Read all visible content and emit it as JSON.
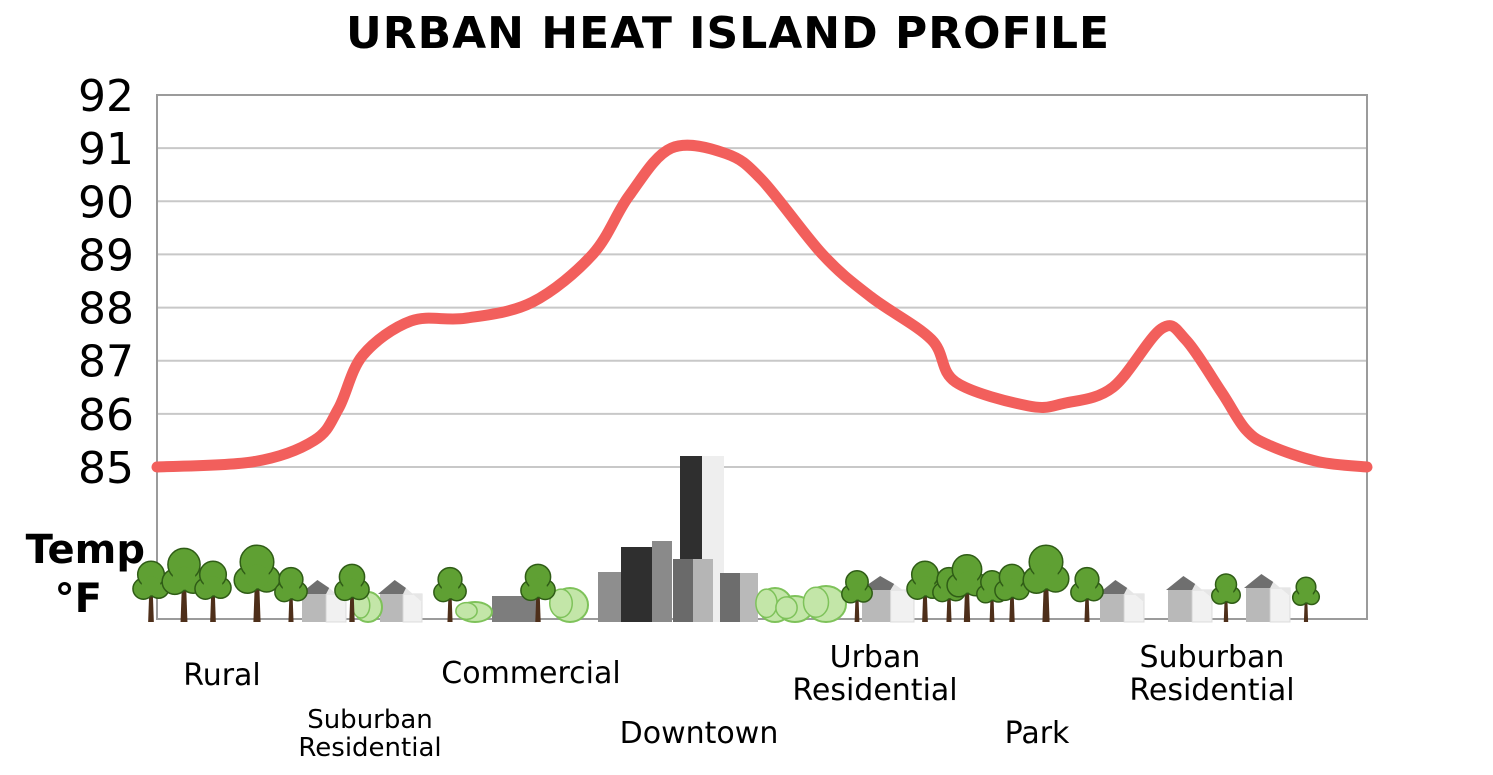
{
  "chart_data": {
    "type": "line",
    "title": "URBAN HEAT ISLAND PROFILE",
    "ylabel": [
      "Temp",
      "°F"
    ],
    "ylim": [
      82.2,
      92
    ],
    "yticks": [
      "85",
      "86",
      "87",
      "88",
      "89",
      "90",
      "91",
      "92"
    ],
    "grid": true,
    "line_color": "#f25f5c",
    "zones": [
      {
        "lines": [
          "Rural"
        ],
        "size": "large"
      },
      {
        "lines": [
          "Suburban",
          "Residential"
        ],
        "size": "small"
      },
      {
        "lines": [
          "Commercial"
        ],
        "size": "large"
      },
      {
        "lines": [
          "Downtown"
        ],
        "size": "large"
      },
      {
        "lines": [
          "Urban",
          "Residential"
        ],
        "size": "large"
      },
      {
        "lines": [
          "Park"
        ],
        "size": "large"
      },
      {
        "lines": [
          "Suburban",
          "Residential"
        ],
        "size": "large"
      }
    ],
    "series": [
      {
        "x": [
          0,
          0.08,
          0.13,
          0.15,
          0.17,
          0.21,
          0.255,
          0.31,
          0.36,
          0.39,
          0.425,
          0.47,
          0.5,
          0.55,
          0.59,
          0.64,
          0.66,
          0.72,
          0.75,
          0.79,
          0.83,
          0.85,
          0.88,
          0.9,
          0.92,
          0.96,
          1.0
        ],
        "values": [
          85.0,
          85.1,
          85.5,
          86.1,
          87.1,
          87.75,
          87.8,
          88.1,
          89.0,
          90.1,
          91.0,
          90.9,
          90.4,
          89.0,
          88.2,
          87.4,
          86.6,
          86.15,
          86.2,
          86.5,
          87.6,
          87.4,
          86.4,
          85.7,
          85.4,
          85.1,
          85.0
        ]
      }
    ]
  }
}
